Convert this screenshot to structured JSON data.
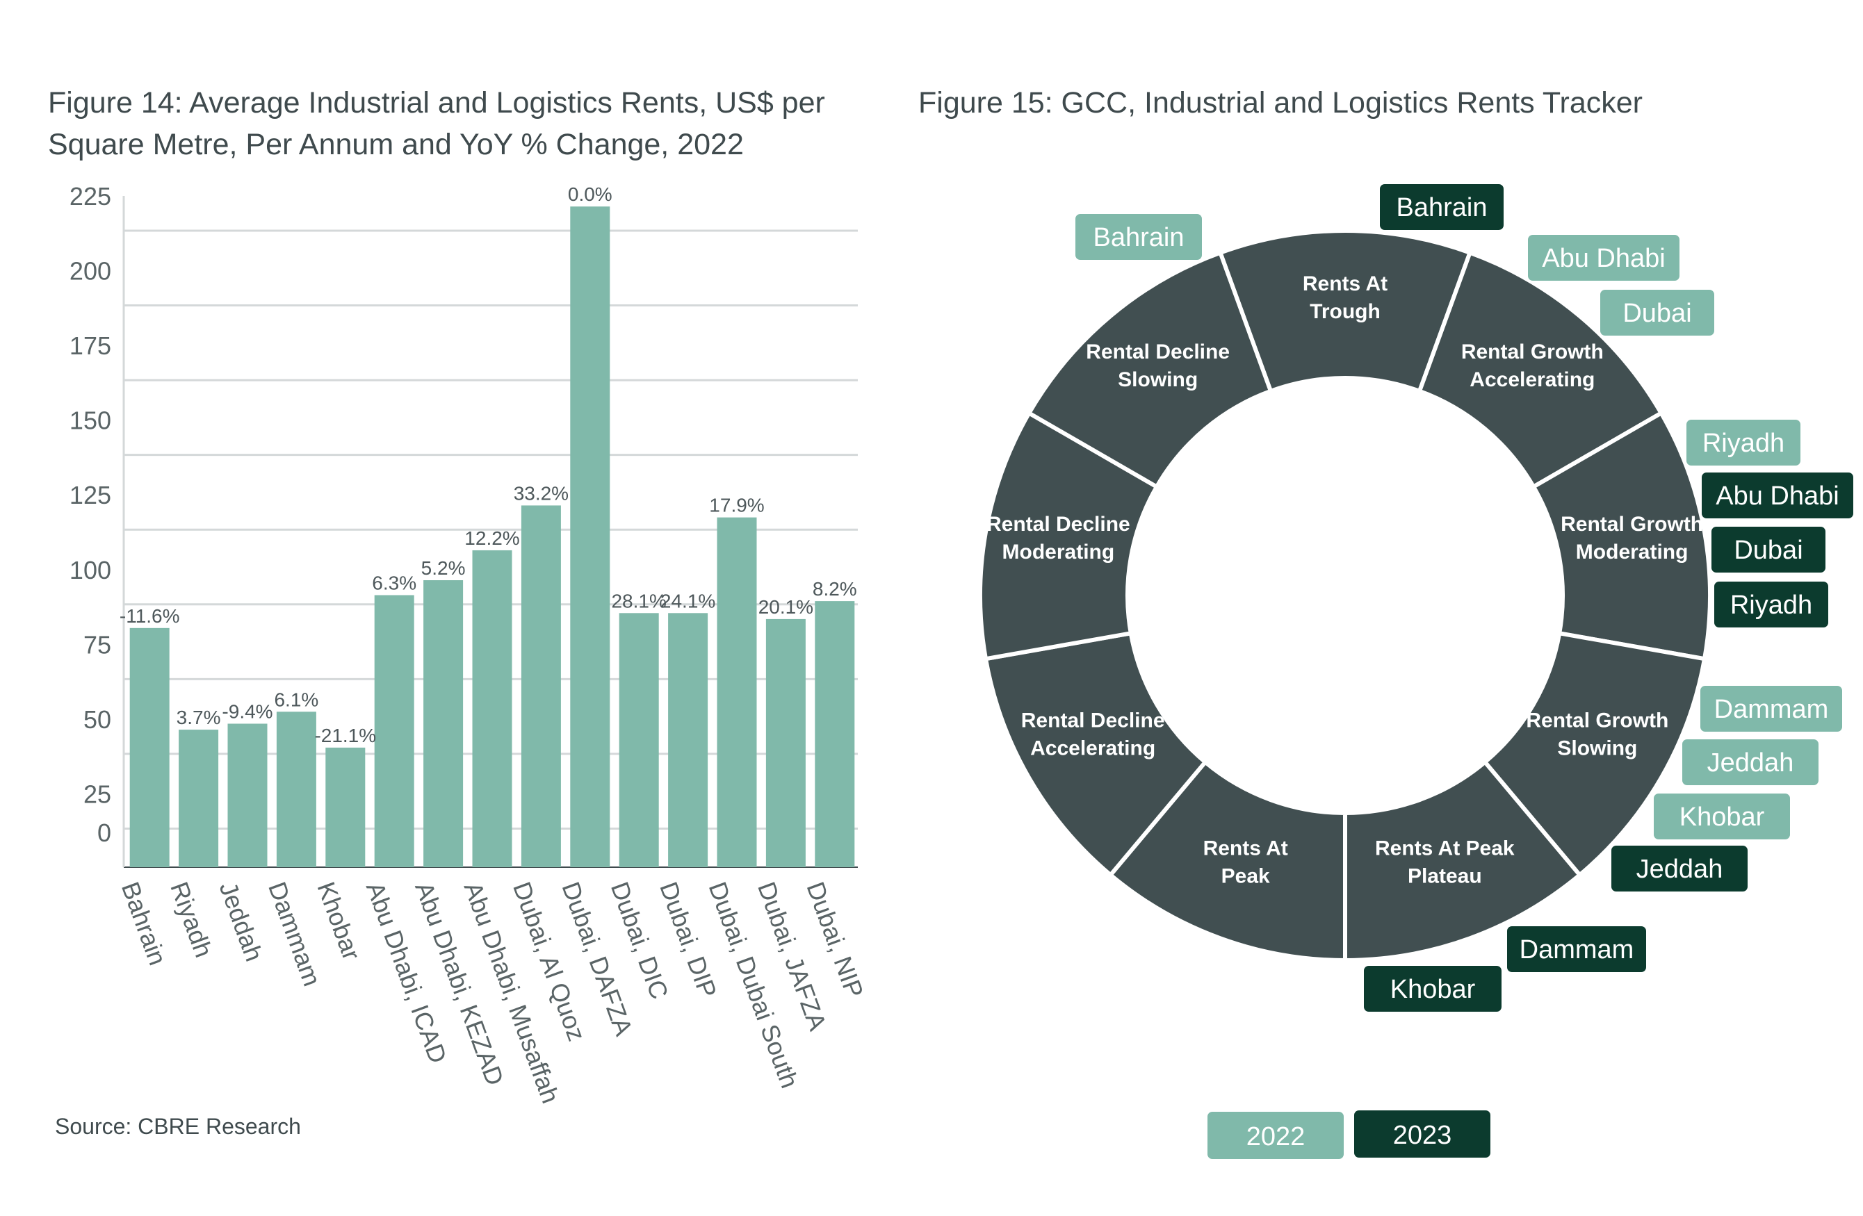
{
  "figure14": {
    "title": "Figure 14:  Average Industrial and Logistics Rents, US$ per Square Metre, Per Annum and YoY % Change, 2022",
    "source": "Source: CBRE Research"
  },
  "figure15": {
    "title": "Figure 15: GCC, Industrial and Logistics Rents Tracker"
  },
  "chart_data": [
    {
      "type": "bar",
      "title": "Figure 14:  Average Industrial and Logistics Rents, US$ per Square Metre, Per Annum and YoY % Change, 2022",
      "categories": [
        "Bahrain",
        "Riyadh",
        "Jeddah",
        "Dammam",
        "Khobar",
        "Abu Dhabi, ICAD",
        "Abu Dhabi, KEZAD",
        "Abu Dhabi, Musaffah",
        "Dubai, Al Quoz",
        "Dubai, DAFZA",
        "Dubai, DIC",
        "Dubai, DIP",
        "Dubai, Dubai South",
        "Dubai, JAFZA",
        "Dubai, NIP"
      ],
      "values": [
        80,
        46,
        48,
        52,
        40,
        91,
        96,
        106,
        121,
        221,
        85,
        85,
        117,
        83,
        89
      ],
      "data_labels": [
        "-11.6%",
        "3.7%",
        "-9.4%",
        "6.1%",
        "-21.1%",
        "6.3%",
        "5.2%",
        "12.2%",
        "33.2%",
        "0.0%",
        "28.1%",
        "24.1%",
        "17.9%",
        "20.1%",
        "8.2%"
      ],
      "yticks": [
        "0",
        "25",
        "50",
        "75",
        "100",
        "125",
        "150",
        "175",
        "200",
        "225"
      ],
      "ylim": [
        0,
        225
      ],
      "grid": true,
      "bar_color": "#80b9aa",
      "xlabel": "",
      "ylabel": ""
    },
    {
      "type": "donut",
      "title": "Figure 15: GCC, Industrial and Logistics Rents Tracker",
      "segments": [
        "Rents At Trough",
        "Rental Growth Accelerating",
        "Rental Growth Moderating",
        "Rental Growth Slowing",
        "Rents At Peak Plateau",
        "Rents At Peak",
        "Rental Decline Accelerating",
        "Rental Decline Moderating",
        "Rental Decline Slowing"
      ],
      "segment_color": "#414f51",
      "legend": [
        {
          "label": "2022",
          "color": "#80b9aa"
        },
        {
          "label": "2023",
          "color": "#0c3b2e"
        }
      ],
      "tags": [
        {
          "label": "Bahrain",
          "year": "2023",
          "segment": "Rents At Trough"
        },
        {
          "label": "Bahrain",
          "year": "2022",
          "segment": "Rental Decline Slowing"
        },
        {
          "label": "Abu Dhabi",
          "year": "2022",
          "segment": "Rental Growth Accelerating"
        },
        {
          "label": "Dubai",
          "year": "2022",
          "segment": "Rental Growth Accelerating"
        },
        {
          "label": "Riyadh",
          "year": "2022",
          "segment": "Rental Growth Moderating"
        },
        {
          "label": "Abu Dhabi",
          "year": "2023",
          "segment": "Rental Growth Moderating"
        },
        {
          "label": "Dubai",
          "year": "2023",
          "segment": "Rental Growth Moderating"
        },
        {
          "label": "Riyadh",
          "year": "2023",
          "segment": "Rental Growth Moderating"
        },
        {
          "label": "Dammam",
          "year": "2022",
          "segment": "Rental Growth Slowing"
        },
        {
          "label": "Jeddah",
          "year": "2022",
          "segment": "Rental Growth Slowing"
        },
        {
          "label": "Khobar",
          "year": "2022",
          "segment": "Rental Growth Slowing"
        },
        {
          "label": "Jeddah",
          "year": "2023",
          "segment": "Rental Growth Slowing"
        },
        {
          "label": "Dammam",
          "year": "2023",
          "segment": "Rents At Peak Plateau"
        },
        {
          "label": "Khobar",
          "year": "2023",
          "segment": "Rents At Peak Plateau"
        }
      ]
    }
  ]
}
